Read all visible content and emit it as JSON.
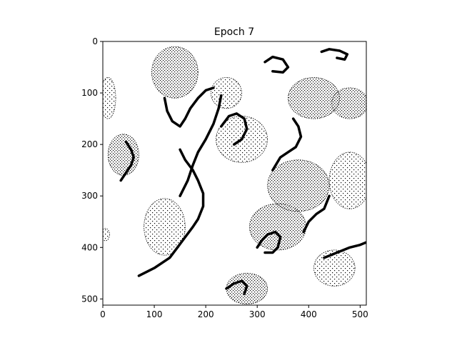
{
  "figure": {
    "title": "Epoch 7"
  },
  "chart_data": {
    "type": "heatmap",
    "title": "Epoch 7",
    "xlabel": "",
    "ylabel": "",
    "image_size": [
      512,
      512
    ],
    "colormap": "binary (black and white)",
    "xlim": [
      0,
      511
    ],
    "ylim": [
      511,
      0
    ],
    "x_ticks": [
      0,
      100,
      200,
      300,
      400,
      500
    ],
    "y_ticks": [
      0,
      100,
      200,
      300,
      400,
      500
    ],
    "description_note": "Binary edge-map image of irregular blob outlines; dense dotted textures with thick black contour strokes.",
    "colors": {
      "foreground": "#000000",
      "background": "#ffffff"
    },
    "strokes": [
      {
        "name": "left-diagonal-contour",
        "points": [
          [
            70,
            455
          ],
          [
            100,
            440
          ],
          [
            130,
            420
          ],
          [
            145,
            400
          ],
          [
            160,
            380
          ],
          [
            175,
            360
          ],
          [
            185,
            345
          ],
          [
            195,
            320
          ],
          [
            195,
            295
          ],
          [
            185,
            270
          ],
          [
            175,
            250
          ],
          [
            160,
            230
          ],
          [
            150,
            210
          ]
        ]
      },
      {
        "name": "center-ridge",
        "points": [
          [
            150,
            300
          ],
          [
            165,
            270
          ],
          [
            175,
            240
          ],
          [
            185,
            215
          ],
          [
            200,
            190
          ],
          [
            215,
            160
          ],
          [
            225,
            130
          ],
          [
            230,
            105
          ]
        ]
      },
      {
        "name": "upper-left-curve",
        "points": [
          [
            120,
            110
          ],
          [
            125,
            135
          ],
          [
            135,
            155
          ],
          [
            150,
            165
          ],
          [
            160,
            150
          ],
          [
            170,
            130
          ],
          [
            185,
            110
          ],
          [
            200,
            95
          ],
          [
            215,
            90
          ]
        ]
      },
      {
        "name": "upper-center-hook",
        "points": [
          [
            230,
            165
          ],
          [
            245,
            145
          ],
          [
            260,
            140
          ],
          [
            275,
            150
          ],
          [
            280,
            170
          ],
          [
            270,
            190
          ],
          [
            255,
            200
          ]
        ]
      },
      {
        "name": "right-mid-contour",
        "points": [
          [
            330,
            250
          ],
          [
            345,
            225
          ],
          [
            360,
            215
          ],
          [
            375,
            205
          ],
          [
            385,
            185
          ],
          [
            380,
            165
          ],
          [
            370,
            150
          ]
        ]
      },
      {
        "name": "lower-right-arc",
        "points": [
          [
            390,
            370
          ],
          [
            400,
            350
          ],
          [
            415,
            335
          ],
          [
            430,
            325
          ],
          [
            440,
            300
          ]
        ]
      },
      {
        "name": "lower-center-loop",
        "points": [
          [
            300,
            400
          ],
          [
            310,
            385
          ],
          [
            320,
            375
          ],
          [
            335,
            370
          ],
          [
            345,
            380
          ],
          [
            340,
            400
          ],
          [
            330,
            410
          ],
          [
            315,
            410
          ]
        ]
      },
      {
        "name": "bottom-right-stroke",
        "points": [
          [
            430,
            420
          ],
          [
            455,
            410
          ],
          [
            480,
            400
          ],
          [
            500,
            395
          ],
          [
            512,
            390
          ]
        ]
      },
      {
        "name": "top-right-blob",
        "points": [
          [
            425,
            20
          ],
          [
            440,
            15
          ],
          [
            460,
            18
          ],
          [
            475,
            25
          ],
          [
            470,
            35
          ],
          [
            455,
            32
          ]
        ]
      },
      {
        "name": "top-center-oval",
        "points": [
          [
            315,
            40
          ],
          [
            330,
            30
          ],
          [
            350,
            35
          ],
          [
            360,
            50
          ],
          [
            350,
            60
          ],
          [
            330,
            58
          ]
        ]
      },
      {
        "name": "left-small-arc",
        "points": [
          [
            35,
            270
          ],
          [
            45,
            255
          ],
          [
            55,
            240
          ],
          [
            60,
            225
          ],
          [
            55,
            210
          ],
          [
            45,
            195
          ]
        ]
      },
      {
        "name": "bottom-left-hook",
        "points": [
          [
            240,
            480
          ],
          [
            255,
            470
          ],
          [
            270,
            465
          ],
          [
            280,
            475
          ],
          [
            275,
            490
          ]
        ]
      }
    ],
    "blobs": [
      {
        "name": "top-left-cluster",
        "cx": 140,
        "cy": 60,
        "rx": 45,
        "ry": 50
      },
      {
        "name": "top-middle",
        "cx": 240,
        "cy": 100,
        "rx": 30,
        "ry": 30
      },
      {
        "name": "top-right-edge",
        "cx": 480,
        "cy": 120,
        "rx": 35,
        "ry": 30
      },
      {
        "name": "left-edge",
        "cx": 10,
        "cy": 110,
        "rx": 15,
        "ry": 40
      },
      {
        "name": "left-mid",
        "cx": 40,
        "cy": 220,
        "rx": 30,
        "ry": 40
      },
      {
        "name": "center-upper",
        "cx": 270,
        "cy": 190,
        "rx": 50,
        "ry": 45
      },
      {
        "name": "center-right",
        "cx": 380,
        "cy": 280,
        "rx": 60,
        "ry": 50
      },
      {
        "name": "right-edge-mid",
        "cx": 480,
        "cy": 270,
        "rx": 40,
        "ry": 55
      },
      {
        "name": "lower-center",
        "cx": 340,
        "cy": 360,
        "rx": 55,
        "ry": 45
      },
      {
        "name": "left-lower",
        "cx": 120,
        "cy": 360,
        "rx": 40,
        "ry": 55
      },
      {
        "name": "bottom-center",
        "cx": 280,
        "cy": 480,
        "rx": 40,
        "ry": 30
      },
      {
        "name": "bottom-right",
        "cx": 450,
        "cy": 440,
        "rx": 40,
        "ry": 35
      },
      {
        "name": "upper-right-region",
        "cx": 410,
        "cy": 110,
        "rx": 50,
        "ry": 40
      },
      {
        "name": "left-edge-lower",
        "cx": 5,
        "cy": 375,
        "rx": 8,
        "ry": 12
      }
    ]
  }
}
